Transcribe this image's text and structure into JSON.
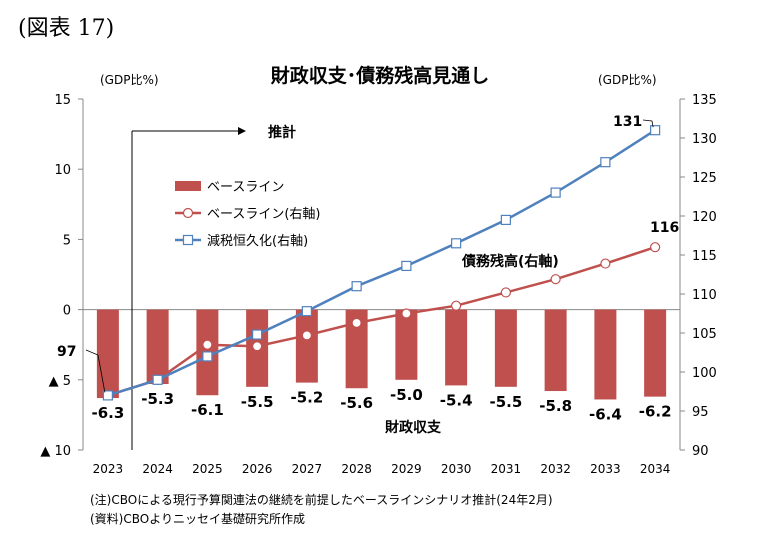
{
  "figure_label": "(図表 17)",
  "chart_data": {
    "type": "bar",
    "title": "財政収支･債務残高見通し",
    "categories": [
      "2023",
      "2024",
      "2025",
      "2026",
      "2027",
      "2028",
      "2029",
      "2030",
      "2031",
      "2032",
      "2033",
      "2034"
    ],
    "y_left": {
      "unit": "(GDP比%)",
      "range": [
        -10,
        15
      ],
      "ticks": [
        15,
        10,
        5,
        0,
        -5,
        -10
      ],
      "tick_labels": [
        "15",
        "10",
        "5",
        "0",
        "▲ 5",
        "▲ 10"
      ]
    },
    "y_right": {
      "unit": "(GDP比%)",
      "range": [
        90,
        135
      ],
      "ticks": [
        135,
        130,
        125,
        120,
        115,
        110,
        105,
        100,
        95,
        90
      ],
      "tick_labels": [
        "135",
        "130",
        "125",
        "120",
        "115",
        "110",
        "105",
        "100",
        "95",
        "90"
      ]
    },
    "series": [
      {
        "name": "ベースライン",
        "axis": "left",
        "type": "bar",
        "color": "#c0504d",
        "values": [
          -6.3,
          -5.3,
          -6.1,
          -5.5,
          -5.2,
          -5.6,
          -5.0,
          -5.4,
          -5.5,
          -5.8,
          -6.4,
          -6.2
        ],
        "labels": [
          "-6.3",
          "-5.3",
          "-6.1",
          "-5.5",
          "-5.2",
          "-5.6",
          "-5.0",
          "-5.4",
          "-5.5",
          "-5.8",
          "-6.4",
          "-6.2"
        ]
      },
      {
        "name": "ベースライン(右軸)",
        "axis": "right",
        "type": "line",
        "marker": "circle",
        "color": "#c0504d",
        "values": [
          97,
          99,
          103.5,
          103.3,
          104.7,
          106.3,
          107.5,
          108.5,
          110.2,
          111.9,
          113.9,
          116
        ]
      },
      {
        "name": "減税恒久化(右軸)",
        "axis": "right",
        "type": "line",
        "marker": "square",
        "color": "#4f81bd",
        "values": [
          97,
          99,
          102,
          104.8,
          107.8,
          111,
          113.6,
          116.5,
          119.5,
          123,
          126.9,
          131
        ]
      }
    ],
    "annotations": {
      "forecast": "推計",
      "debt_label": "債務残高(右軸)",
      "balance_label": "財政収支",
      "start_value": "97",
      "end_value_baseline": "116",
      "end_value_taxcut": "131"
    },
    "legend_position": "upper-left",
    "grid": false
  },
  "notes": [
    "(注)CBOによる現行予算関連法の継続を前提したベースラインシナリオ推計(24年2月)",
    "(資料)CBOよりニッセイ基礎研究所作成"
  ]
}
